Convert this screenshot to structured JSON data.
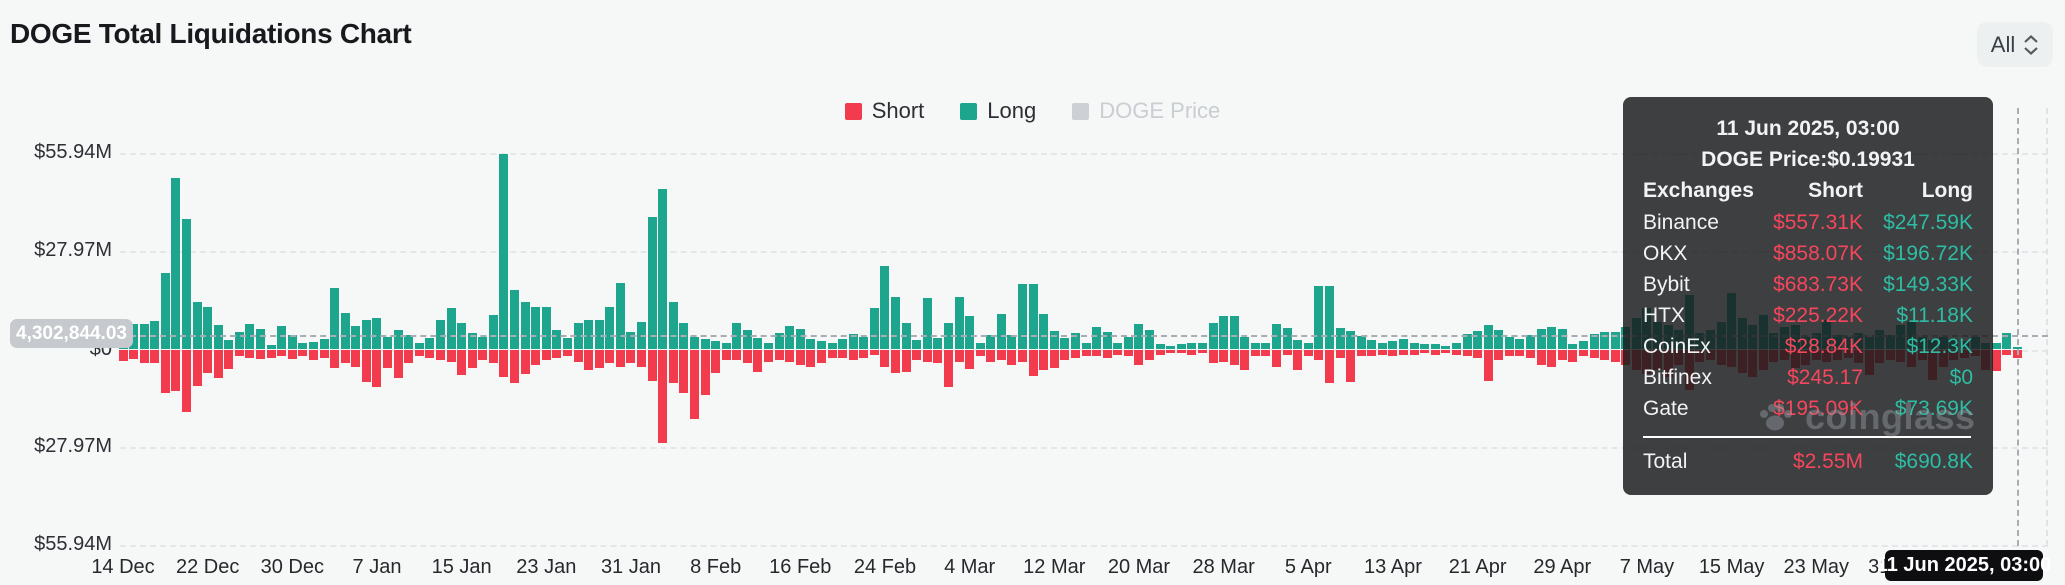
{
  "header": {
    "title": "DOGE Total Liquidations Chart",
    "range_selector": {
      "value": "All"
    }
  },
  "legend": [
    {
      "label": "Short",
      "color": "#f23c4e",
      "active": true
    },
    {
      "label": "Long",
      "color": "#1ea58e",
      "active": true
    },
    {
      "label": "DOGE Price",
      "color": "#cdd0d4",
      "active": false
    }
  ],
  "y_axis": {
    "labels": [
      "$55.94M",
      "$27.97M",
      "$0",
      "$27.97M",
      "$55.94M"
    ]
  },
  "x_axis": {
    "labels": [
      "14 Dec",
      "22 Dec",
      "30 Dec",
      "7 Jan",
      "15 Jan",
      "23 Jan",
      "31 Jan",
      "8 Feb",
      "16 Feb",
      "24 Feb",
      "4 Mar",
      "12 Mar",
      "20 Mar",
      "28 Mar",
      "5 Apr",
      "13 Apr",
      "21 Apr",
      "29 Apr",
      "7 May",
      "15 May",
      "23 May",
      "31 May"
    ]
  },
  "crosshair": {
    "y_badge": "4,302,844.03",
    "x_badge": "11 Jun 2025, 03:00"
  },
  "watermark": {
    "text": "coinglass",
    "icon": "paw-icon"
  },
  "tooltip": {
    "date": "11 Jun 2025, 03:00",
    "price_line": "DOGE Price:$0.19931",
    "columns": [
      "Exchanges",
      "Short",
      "Long"
    ],
    "rows": [
      [
        "Binance",
        "$557.31K",
        "$247.59K"
      ],
      [
        "OKX",
        "$858.07K",
        "$196.72K"
      ],
      [
        "Bybit",
        "$683.73K",
        "$149.33K"
      ],
      [
        "HTX",
        "$225.22K",
        "$11.18K"
      ],
      [
        "CoinEx",
        "$28.84K",
        "$12.3K"
      ],
      [
        "Bitfinex",
        "$245.17",
        "$0"
      ],
      [
        "Gate",
        "$195.09K",
        "$73.69K"
      ]
    ],
    "total": [
      "Total",
      "$2.55M",
      "$690.8K"
    ]
  },
  "chart_data": {
    "type": "bar",
    "title": "DOGE Total Liquidations Chart",
    "unit": "USD millions",
    "x_interval": "daily",
    "x_range": [
      "14 Dec 2024",
      "11 Jun 2025"
    ],
    "ylim": [
      -55.94,
      55.94
    ],
    "y_ticks": [
      "$55.94M",
      "$27.97M",
      "$0",
      "-$27.97M",
      "-$55.94M"
    ],
    "grid": "horizontal-dashed",
    "legend_position": "top-center",
    "hovered_index": 179,
    "hovered_point": {
      "date": "11 Jun 2025, 03:00",
      "doge_price_usd": 0.19931,
      "short_total": "$2.55M",
      "long_total": "$690.8K"
    },
    "series": [
      {
        "name": "Long",
        "color": "#1ea58e",
        "direction": "up",
        "values": [
          5,
          7.3,
          7.3,
          8.3,
          22,
          49.3,
          37.5,
          13.5,
          12.3,
          7,
          2.7,
          5,
          7.3,
          5.9,
          1.2,
          6.6,
          4.2,
          1.9,
          2.1,
          3,
          17.6,
          10.6,
          6.6,
          8.6,
          9.1,
          3.7,
          5.7,
          4.3,
          2,
          3.3,
          8.6,
          12,
          7.6,
          4.7,
          3.7,
          10,
          55.94,
          17,
          13.7,
          12.3,
          12.3,
          5.6,
          3.3,
          7.7,
          8.5,
          8.5,
          12.3,
          19,
          5,
          8,
          38,
          46,
          13.6,
          7.6,
          3.5,
          3,
          2.5,
          2,
          7.6,
          5.6,
          3.2,
          2,
          4.7,
          6.8,
          5.8,
          3,
          2.5,
          2,
          3,
          4.5,
          3.5,
          12,
          24,
          15.1,
          7.7,
          2.7,
          14.7,
          3.2,
          7.5,
          15,
          9.6,
          2,
          4.2,
          10.2,
          4.2,
          18.8,
          18.8,
          10.2,
          5.4,
          3.2,
          4.6,
          2,
          6.4,
          5.1,
          2,
          3.7,
          7.3,
          5.6,
          1.5,
          1,
          1.5,
          2,
          1.8,
          7.7,
          9.6,
          9.6,
          3.7,
          2,
          1.8,
          7.3,
          6.1,
          2.7,
          2,
          18.2,
          18.2,
          6.1,
          5.4,
          3.9,
          2.7,
          2,
          2.5,
          2.9,
          2,
          1.5,
          1.5,
          1,
          2,
          4.4,
          5.4,
          7,
          5.6,
          3.7,
          3,
          4.2,
          5.8,
          6.4,
          5.8,
          1.5,
          2.5,
          4.4,
          5.1,
          5,
          6.5,
          9,
          12,
          8,
          7,
          5.6,
          15.6,
          4.8,
          5.6,
          8,
          16.1,
          8.9,
          7,
          9.9,
          4.6,
          6.5,
          7,
          3.7,
          4.6,
          8.5,
          4.2,
          3.7,
          4.6,
          3.7,
          5.6,
          4.2,
          7,
          8,
          3.7,
          2.7,
          3.7,
          3,
          2.5,
          3.5,
          2,
          1.8,
          4.6,
          0.69
        ]
      },
      {
        "name": "Short",
        "color": "#f23c4e",
        "direction": "down",
        "values": [
          -3.4,
          -2.6,
          -3.9,
          -4,
          -12.6,
          -11.9,
          -17.9,
          -10.5,
          -6.7,
          -8.2,
          -5.6,
          -1.9,
          -2.4,
          -2.8,
          -2.3,
          -1.9,
          -2.8,
          -2,
          -3,
          -2.5,
          -5.4,
          -4,
          -5,
          -9.3,
          -10.7,
          -5.4,
          -8.2,
          -3.9,
          -2,
          -2.5,
          -3,
          -3.5,
          -7.3,
          -5.4,
          -3,
          -4,
          -7.8,
          -9.6,
          -7,
          -4.5,
          -3,
          -2.5,
          -2,
          -3.5,
          -5.9,
          -5.4,
          -4,
          -5,
          -4,
          -5,
          -9,
          -26.8,
          -9.6,
          -12.5,
          -20,
          -13,
          -6.8,
          -3,
          -3,
          -4,
          -6.4,
          -3.5,
          -3,
          -3.5,
          -4.5,
          -5,
          -4,
          -2.5,
          -2.5,
          -3,
          -2.5,
          -1.5,
          -4.9,
          -6.8,
          -6.4,
          -3,
          -3.5,
          -4,
          -10.7,
          -3.5,
          -5.7,
          -2,
          -3.5,
          -3,
          -4.4,
          -3.5,
          -7.6,
          -5.9,
          -5.4,
          -3,
          -2.5,
          -2,
          -2,
          -2.5,
          -1.5,
          -2,
          -4.4,
          -3,
          -1.5,
          -1,
          -1,
          -1.5,
          -1.1,
          -3.8,
          -3.5,
          -4.4,
          -5.9,
          -2,
          -2,
          -4.9,
          -1.6,
          -5.9,
          -2,
          -3,
          -9.7,
          -2.3,
          -9.2,
          -2,
          -2,
          -1.5,
          -2,
          -1.5,
          -1.5,
          -1,
          -1.5,
          -1,
          -1.5,
          -2,
          -2.5,
          -9,
          -3,
          -2,
          -2,
          -2.5,
          -4.4,
          -4.9,
          -3,
          -3.5,
          -2,
          -2.5,
          -3,
          -3.5,
          -4.5,
          -6,
          -7,
          -6,
          -7.8,
          -4.4,
          -11.6,
          -3.5,
          -3,
          -4.4,
          -4.9,
          -6.8,
          -7.8,
          -5.9,
          -3.5,
          -3,
          -5.4,
          -4.4,
          -3,
          -3.5,
          -3,
          -2.5,
          -4,
          -7.3,
          -4,
          -3,
          -3.5,
          -4.9,
          -3,
          -8.8,
          -4.9,
          -3,
          -2.5,
          -2,
          -5.9,
          -6.3,
          -1.6,
          -2.55
        ]
      }
    ]
  }
}
